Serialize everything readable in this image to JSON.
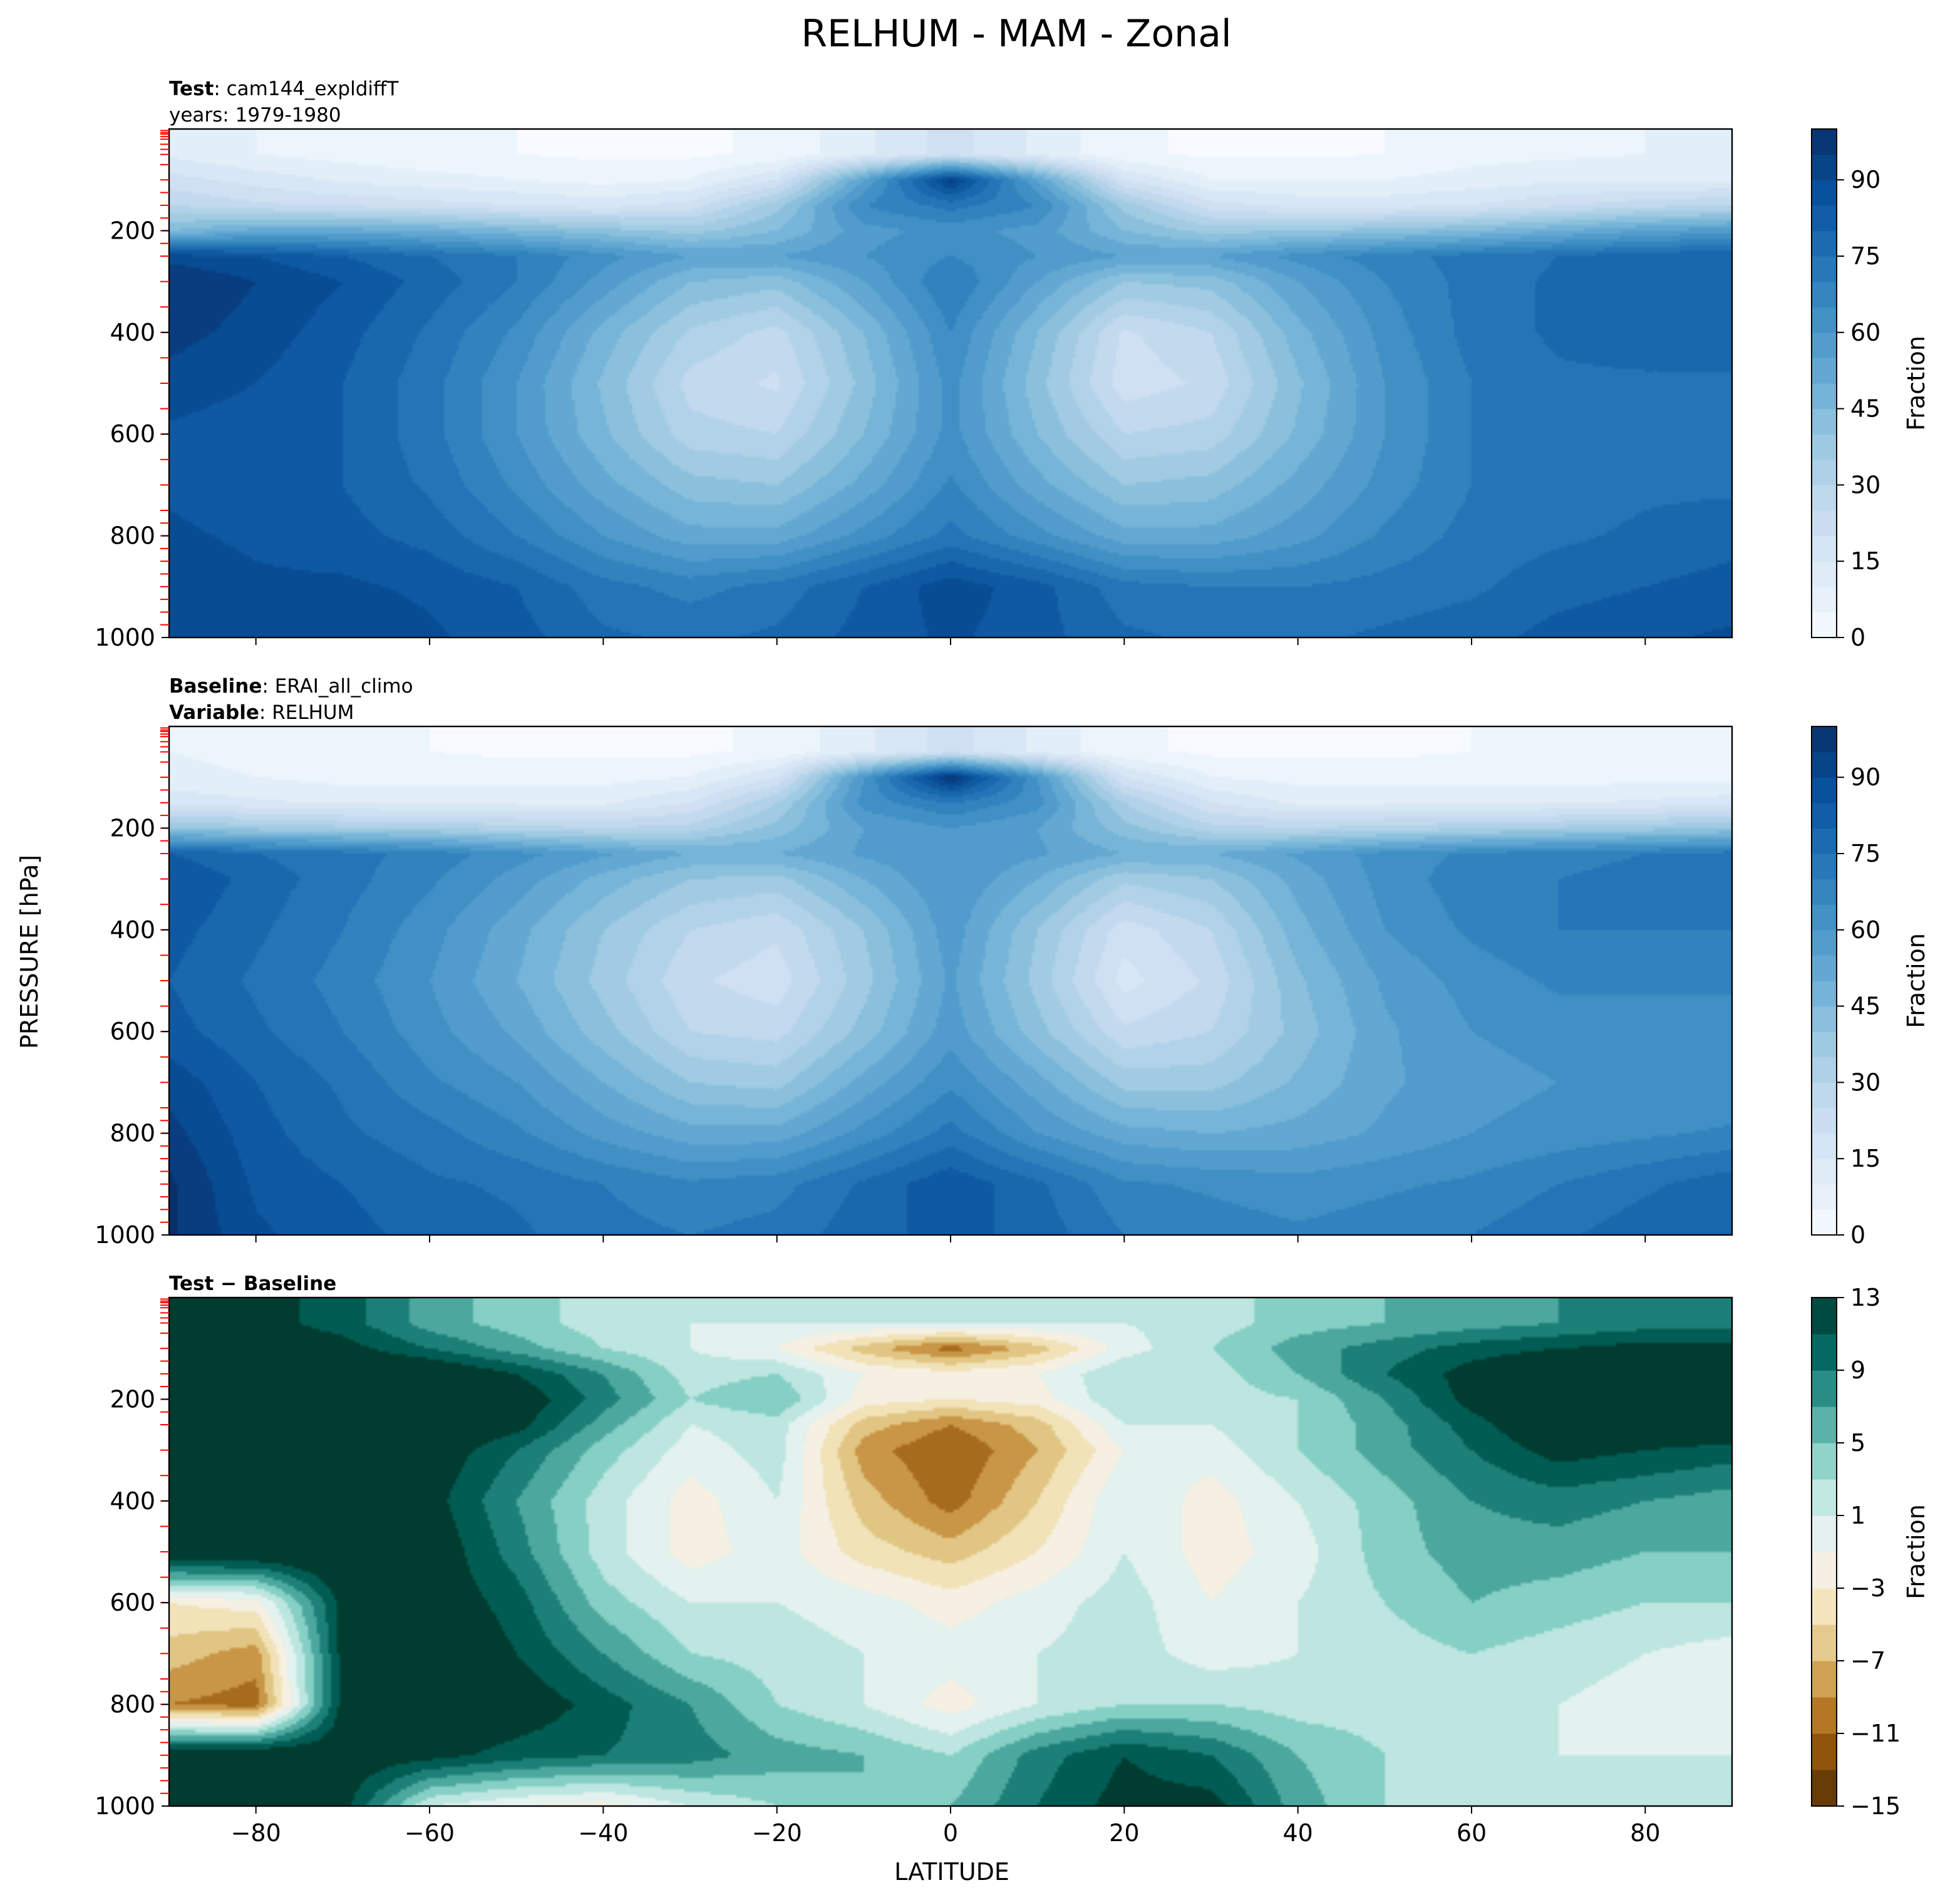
{
  "figure": {
    "title": "RELHUM - MAM - Zonal",
    "ylabel": "PRESSURE [hPa]",
    "xlabel": "LATITUDE"
  },
  "panels": [
    {
      "id": "test",
      "header": [
        {
          "bold": "Test",
          "sep": ": ",
          "text": "cam144_expldiffT"
        },
        {
          "bold": "",
          "sep": "",
          "text": "years: 1979-1980"
        }
      ],
      "colorbar": {
        "label": "Fraction",
        "ticks": [
          "0",
          "15",
          "30",
          "45",
          "60",
          "75",
          "90"
        ]
      }
    },
    {
      "id": "baseline",
      "header": [
        {
          "bold": "Baseline",
          "sep": ": ",
          "text": "ERAI_all_climo"
        },
        {
          "bold": "Variable",
          "sep": ": ",
          "text": "RELHUM"
        }
      ],
      "colorbar": {
        "label": "Fraction",
        "ticks": [
          "0",
          "15",
          "30",
          "45",
          "60",
          "75",
          "90"
        ]
      }
    },
    {
      "id": "diff",
      "header": [
        {
          "bold": "Test − Baseline",
          "sep": "",
          "text": ""
        }
      ],
      "colorbar": {
        "label": "Fraction",
        "ticks": [
          "13",
          "9",
          "5",
          "1",
          "−3",
          "−7",
          "−11",
          "−15"
        ]
      }
    }
  ],
  "axes": {
    "yticks": [
      "200",
      "400",
      "600",
      "800",
      "1000"
    ],
    "xticks": [
      "−80",
      "−60",
      "−40",
      "−20",
      "0",
      "20",
      "40",
      "60",
      "80"
    ]
  },
  "chart_data": [
    {
      "type": "heatmap",
      "title": "Test: cam144_expldiffT, years: 1979-1980",
      "x_name": "LATITUDE",
      "y_name": "PRESSURE [hPa]",
      "xlim": [
        -90,
        90
      ],
      "ylim": [
        1000,
        0
      ],
      "zlim": [
        0,
        100
      ],
      "colorbar_label": "Fraction",
      "colormap": "Blues",
      "x": [
        -90,
        -80,
        -70,
        -60,
        -50,
        -40,
        -30,
        -20,
        -10,
        0,
        10,
        20,
        30,
        40,
        50,
        60,
        70,
        80,
        90
      ],
      "y": [
        50,
        100,
        150,
        200,
        250,
        300,
        400,
        500,
        600,
        700,
        800,
        900,
        1000
      ],
      "z": [
        [
          14,
          10,
          8,
          6,
          5,
          4,
          4,
          6,
          14,
          22,
          14,
          6,
          4,
          4,
          5,
          8,
          9,
          10,
          10
        ],
        [
          22,
          18,
          14,
          12,
          10,
          8,
          10,
          20,
          55,
          92,
          55,
          20,
          10,
          10,
          10,
          12,
          14,
          14,
          14
        ],
        [
          30,
          26,
          24,
          22,
          20,
          18,
          22,
          38,
          65,
          72,
          65,
          38,
          22,
          18,
          18,
          20,
          24,
          28,
          30
        ],
        [
          45,
          52,
          52,
          50,
          46,
          42,
          38,
          45,
          58,
          62,
          58,
          45,
          38,
          40,
          42,
          45,
          50,
          55,
          58
        ],
        [
          88,
          85,
          80,
          75,
          70,
          62,
          55,
          55,
          60,
          65,
          60,
          55,
          55,
          62,
          68,
          72,
          75,
          78,
          80
        ],
        [
          95,
          90,
          85,
          78,
          70,
          58,
          45,
          42,
          55,
          70,
          55,
          40,
          42,
          55,
          65,
          72,
          76,
          78,
          78
        ],
        [
          92,
          88,
          82,
          74,
          64,
          48,
          34,
          28,
          45,
          65,
          45,
          24,
          30,
          48,
          62,
          72,
          76,
          78,
          78
        ],
        [
          88,
          85,
          80,
          72,
          60,
          44,
          28,
          24,
          42,
          62,
          42,
          22,
          26,
          44,
          60,
          70,
          74,
          74,
          74
        ],
        [
          84,
          82,
          80,
          72,
          60,
          46,
          32,
          30,
          45,
          62,
          45,
          30,
          32,
          46,
          60,
          70,
          72,
          72,
          72
        ],
        [
          84,
          82,
          80,
          74,
          64,
          52,
          42,
          40,
          52,
          66,
          52,
          40,
          42,
          52,
          62,
          70,
          72,
          74,
          74
        ],
        [
          86,
          84,
          82,
          78,
          70,
          60,
          52,
          52,
          62,
          72,
          62,
          52,
          52,
          58,
          66,
          72,
          74,
          76,
          78
        ],
        [
          88,
          86,
          86,
          84,
          80,
          72,
          68,
          72,
          80,
          88,
          82,
          72,
          70,
          70,
          72,
          74,
          78,
          80,
          82
        ],
        [
          90,
          88,
          88,
          86,
          82,
          76,
          74,
          76,
          82,
          86,
          82,
          76,
          74,
          74,
          76,
          78,
          82,
          84,
          86
        ]
      ]
    },
    {
      "type": "heatmap",
      "title": "Baseline: ERAI_all_climo, Variable: RELHUM",
      "x_name": "LATITUDE",
      "y_name": "PRESSURE [hPa]",
      "xlim": [
        -90,
        90
      ],
      "ylim": [
        1000,
        0
      ],
      "zlim": [
        0,
        100
      ],
      "colorbar_label": "Fraction",
      "colormap": "Blues",
      "x": [
        -90,
        -80,
        -70,
        -60,
        -50,
        -40,
        -30,
        -20,
        -10,
        0,
        10,
        20,
        30,
        40,
        50,
        60,
        70,
        80,
        90
      ],
      "y": [
        50,
        100,
        150,
        200,
        250,
        300,
        400,
        500,
        600,
        700,
        800,
        900,
        1000
      ],
      "z": [
        [
          10,
          8,
          6,
          5,
          4,
          4,
          4,
          6,
          14,
          22,
          14,
          6,
          4,
          4,
          4,
          5,
          6,
          6,
          6
        ],
        [
          12,
          10,
          8,
          8,
          8,
          8,
          10,
          20,
          60,
          96,
          60,
          20,
          10,
          8,
          8,
          8,
          8,
          8,
          8
        ],
        [
          18,
          16,
          14,
          14,
          14,
          14,
          20,
          35,
          62,
          70,
          62,
          35,
          20,
          14,
          14,
          14,
          14,
          16,
          18
        ],
        [
          40,
          38,
          36,
          35,
          32,
          30,
          32,
          42,
          55,
          60,
          55,
          42,
          32,
          30,
          32,
          34,
          36,
          38,
          40
        ],
        [
          80,
          75,
          72,
          68,
          62,
          56,
          50,
          50,
          56,
          60,
          56,
          50,
          50,
          56,
          62,
          66,
          68,
          70,
          72
        ],
        [
          85,
          78,
          72,
          66,
          58,
          48,
          40,
          38,
          50,
          60,
          50,
          36,
          40,
          52,
          62,
          68,
          70,
          72,
          72
        ],
        [
          82,
          76,
          70,
          62,
          52,
          40,
          30,
          26,
          40,
          58,
          40,
          22,
          30,
          48,
          60,
          66,
          70,
          70,
          70
        ],
        [
          80,
          74,
          68,
          60,
          50,
          38,
          26,
          22,
          38,
          56,
          38,
          18,
          26,
          44,
          56,
          62,
          66,
          66,
          66
        ],
        [
          82,
          76,
          70,
          62,
          54,
          42,
          30,
          28,
          42,
          58,
          42,
          26,
          30,
          42,
          54,
          60,
          62,
          62,
          62
        ],
        [
          88,
          80,
          74,
          66,
          60,
          50,
          40,
          38,
          52,
          64,
          52,
          38,
          38,
          46,
          54,
          58,
          60,
          60,
          60
        ],
        [
          92,
          82,
          76,
          72,
          66,
          58,
          52,
          52,
          62,
          72,
          60,
          52,
          50,
          52,
          56,
          60,
          62,
          64,
          66
        ],
        [
          96,
          84,
          80,
          76,
          74,
          70,
          66,
          68,
          76,
          84,
          76,
          66,
          64,
          62,
          64,
          66,
          70,
          74,
          78
        ],
        [
          96,
          86,
          82,
          78,
          76,
          72,
          70,
          72,
          78,
          82,
          78,
          70,
          68,
          66,
          68,
          70,
          74,
          78,
          80
        ]
      ]
    },
    {
      "type": "heatmap",
      "title": "Test − Baseline",
      "x_name": "LATITUDE",
      "y_name": "PRESSURE [hPa]",
      "xlim": [
        -90,
        90
      ],
      "ylim": [
        1000,
        0
      ],
      "zlim": [
        -15,
        13
      ],
      "colorbar_label": "Fraction",
      "colormap": "BrBG",
      "x": [
        -90,
        -80,
        -70,
        -60,
        -50,
        -40,
        -30,
        -20,
        -10,
        0,
        10,
        20,
        30,
        40,
        50,
        60,
        70,
        80,
        90
      ],
      "y": [
        50,
        100,
        150,
        200,
        250,
        300,
        400,
        500,
        600,
        700,
        800,
        900,
        1000
      ],
      "z": [
        [
          14,
          12,
          10,
          6,
          4,
          2,
          1,
          1,
          1,
          1,
          1,
          1,
          2,
          4,
          5,
          6,
          7,
          8,
          8
        ],
        [
          14,
          13,
          12,
          9,
          6,
          3,
          1,
          -1,
          -6,
          -10,
          -6,
          0,
          3,
          6,
          8,
          10,
          11,
          12,
          12
        ],
        [
          14,
          14,
          14,
          14,
          11,
          7,
          2,
          3,
          -1,
          -2,
          -1,
          3,
          2,
          5,
          9,
          12,
          14,
          14,
          14
        ],
        [
          14,
          14,
          14,
          14,
          13,
          8,
          3,
          5,
          -2,
          -3,
          -2,
          3,
          2,
          3,
          7,
          12,
          14,
          14,
          14
        ],
        [
          14,
          14,
          14,
          14,
          12,
          6,
          1,
          2,
          -6,
          -9,
          -6,
          1,
          1,
          3,
          6,
          10,
          14,
          14,
          14
        ],
        [
          14,
          14,
          14,
          13,
          9,
          4,
          0,
          2,
          -8,
          -11,
          -7,
          -1,
          0,
          3,
          6,
          9,
          12,
          11,
          10
        ],
        [
          14,
          14,
          14,
          12,
          7,
          2,
          -2,
          1,
          -6,
          -10,
          -5,
          1,
          -2,
          1,
          4,
          7,
          8,
          7,
          6
        ],
        [
          14,
          14,
          14,
          13,
          8,
          2,
          -2,
          0,
          -4,
          -6,
          -3,
          1,
          -2,
          0,
          4,
          6,
          6,
          5,
          5
        ],
        [
          -3,
          -2,
          12,
          13,
          10,
          4,
          1,
          1,
          0,
          -2,
          0,
          2,
          -1,
          1,
          3,
          5,
          4,
          3,
          3
        ],
        [
          -6,
          -8,
          12,
          14,
          11,
          7,
          3,
          2,
          1,
          0,
          1,
          2,
          0,
          1,
          2,
          3,
          2,
          1,
          0
        ],
        [
          -9,
          -10,
          12,
          14,
          13,
          10,
          7,
          3,
          1,
          -2,
          1,
          3,
          3,
          2,
          2,
          2,
          1,
          0,
          -1
        ],
        [
          14,
          14,
          13,
          12,
          10,
          9,
          8,
          6,
          5,
          3,
          8,
          11,
          9,
          5,
          3,
          2,
          1,
          1,
          1
        ],
        [
          14,
          14,
          12,
          1,
          -1,
          -2,
          1,
          3,
          5,
          5,
          9,
          12,
          12,
          6,
          3,
          2,
          1,
          1,
          1
        ]
      ]
    }
  ],
  "colors": {
    "blues": [
      "#f7fbff",
      "#deebf7",
      "#c6dbef",
      "#9ecae1",
      "#6baed6",
      "#4292c6",
      "#2171b5",
      "#08519c",
      "#08306b"
    ],
    "brbg": [
      "#543005",
      "#8c510a",
      "#bf812d",
      "#dfc27d",
      "#f6e8c3",
      "#f5f5f5",
      "#c7eae5",
      "#80cdc1",
      "#35978f",
      "#01665e",
      "#003c30"
    ],
    "pressure_tick_marks": "#ff0000"
  }
}
